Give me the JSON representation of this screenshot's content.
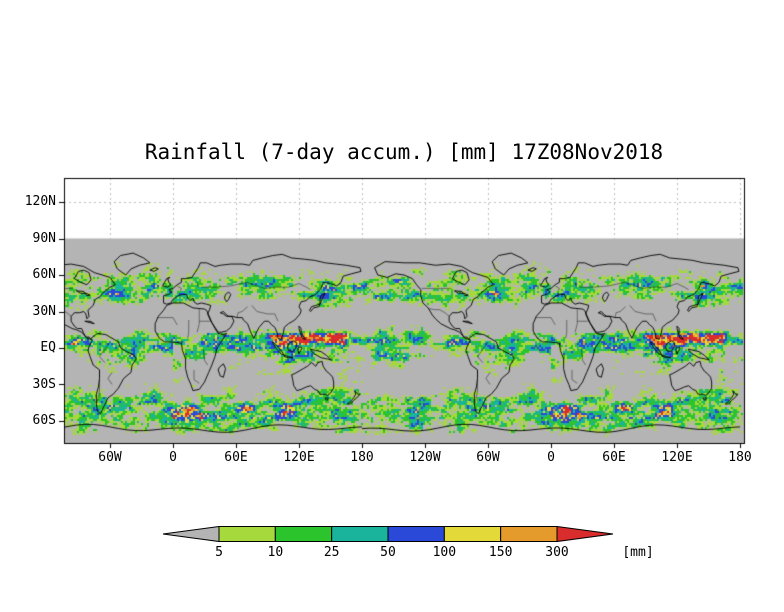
{
  "title": "Rainfall (7-day accum.) [mm] 17Z08Nov2018",
  "y_axis": {
    "labels": [
      "120N",
      "90N",
      "60N",
      "30N",
      "EQ",
      "30S",
      "60S"
    ]
  },
  "x_axis": {
    "labels": [
      "60W",
      "0",
      "60E",
      "120E",
      "180",
      "120W",
      "60W",
      "0",
      "60E",
      "120E",
      "180"
    ]
  },
  "colorbar": {
    "labels": [
      "5",
      "10",
      "25",
      "50",
      "100",
      "150",
      "300"
    ],
    "unit": "[mm]"
  },
  "chart_data": {
    "type": "heatmap",
    "title": "Rainfall (7-day accum.) [mm] 17Z08Nov2018",
    "variable": "Rainfall, 7-day accumulation",
    "unit": "mm",
    "valid_time_label": "17Z08Nov2018",
    "projection": "equirectangular lat-lon; longitude axis wraps the globe ~1.8 times",
    "lat_tick_values_deg": [
      120,
      90,
      60,
      30,
      0,
      -30,
      -60
    ],
    "lon_tick_values_deg": [
      -60,
      0,
      60,
      120,
      180,
      240,
      300,
      360,
      420,
      480,
      540
    ],
    "data_coverage": "gray below-threshold field from 90N southward to map bottom (about 78S); white above 90N",
    "levels_mm": [
      5,
      10,
      25,
      50,
      100,
      150,
      300
    ],
    "level_colors": [
      "#b4b4b4",
      "#a6d93c",
      "#2cc42c",
      "#19b49b",
      "#2b49d8",
      "#e3da3a",
      "#e59a2c",
      "#d92c2c"
    ],
    "legend": [
      {
        "range": "< 5",
        "color": "#b4b4b4"
      },
      {
        "range": "5-10",
        "color": "#a6d93c"
      },
      {
        "range": "10-25",
        "color": "#2cc42c"
      },
      {
        "range": "25-50",
        "color": "#19b49b"
      },
      {
        "range": "50-100",
        "color": "#2b49d8"
      },
      {
        "range": "100-150",
        "color": "#e3da3a"
      },
      {
        "range": "150-300",
        "color": "#e59a2c"
      },
      {
        "range": "> 300",
        "color": "#d92c2c"
      }
    ],
    "pattern_summary": "Speckled rainfall maxima along the ITCZ near the equator (west Pacific warm pool, Amazon, Congo), NH storm tracks, and a strong Southern Ocean band 45S-60S; dry gray subtropics over the Sahara, Arabia, SE Pacific and Australian interior"
  }
}
